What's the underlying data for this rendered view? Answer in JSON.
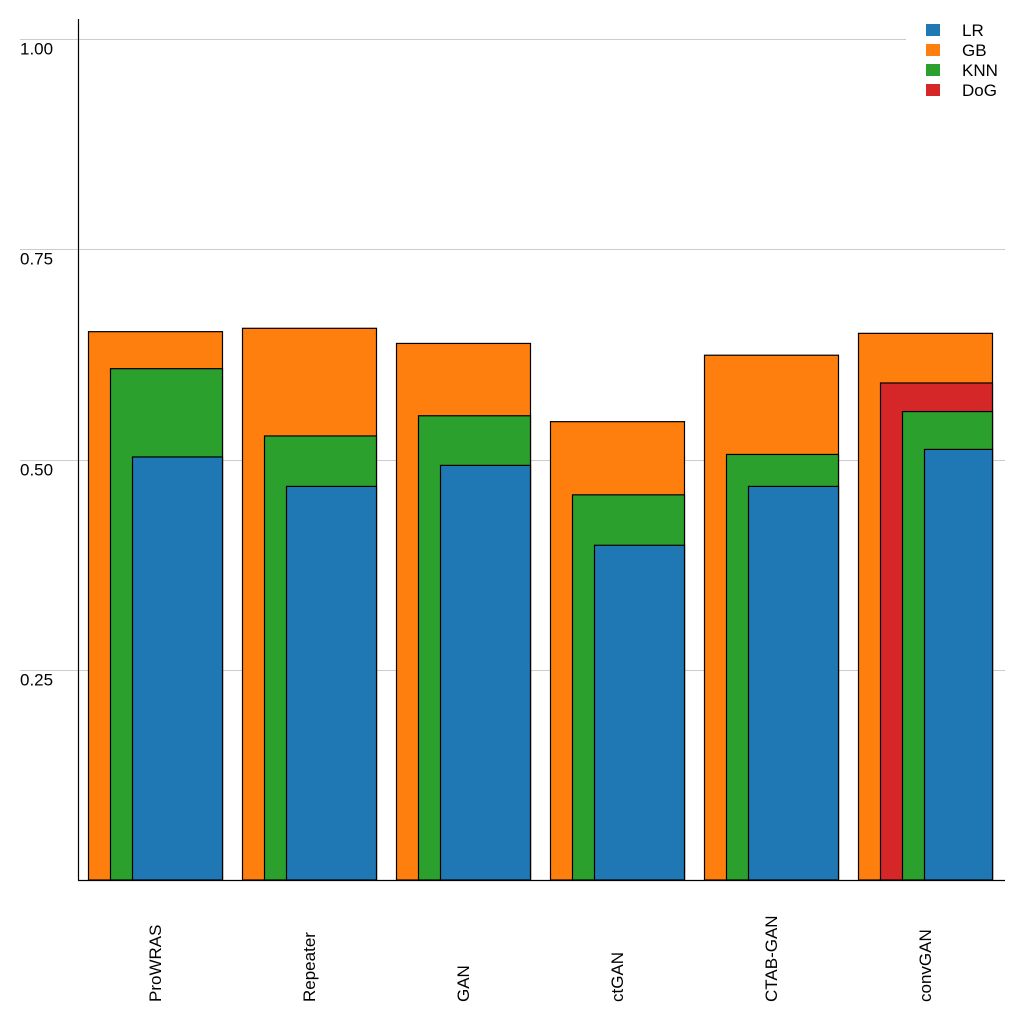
{
  "chart_data": {
    "type": "bar",
    "title": "",
    "xlabel": "",
    "ylabel": "",
    "ylim": [
      0,
      1.0
    ],
    "grid": true,
    "legend_position": "top-right",
    "yticks": [
      0.25,
      0.5,
      0.75,
      1.0
    ],
    "ytick_labels": [
      "0.25",
      "0.50",
      "0.75",
      "1.00"
    ],
    "categories": [
      "ProWRAS",
      "Repeater",
      "GAN",
      "ctGAN",
      "CTAB-GAN",
      "convGAN"
    ],
    "series": [
      {
        "name": "LR",
        "color": "#1f77b4",
        "values": [
          0.503,
          0.468,
          0.493,
          0.398,
          0.468,
          0.512
        ]
      },
      {
        "name": "GB",
        "color": "#ff7f0e",
        "values": [
          0.652,
          0.656,
          0.638,
          0.545,
          0.624,
          0.65
        ]
      },
      {
        "name": "KNN",
        "color": "#2ca02c",
        "values": [
          0.608,
          0.528,
          0.552,
          0.458,
          0.506,
          0.557
        ]
      },
      {
        "name": "DoG",
        "color": "#d62728",
        "values": [
          null,
          null,
          null,
          null,
          null,
          0.591
        ]
      }
    ]
  }
}
